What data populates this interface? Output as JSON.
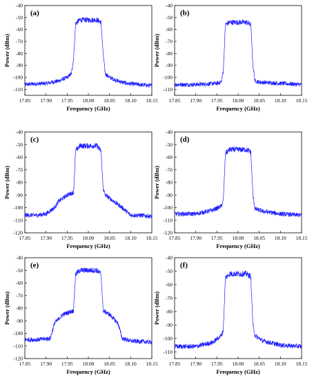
{
  "chart_data": [
    {
      "panel": "(a)",
      "type": "line",
      "xlabel": "Frequency (GHz)",
      "ylabel": "Power (dBm)",
      "xlim": [
        17.85,
        18.15
      ],
      "ylim": [
        -115,
        -40
      ],
      "xticks": [
        "17.85",
        "17.90",
        "17.95",
        "18.00",
        "18.05",
        "18.10",
        "18.15"
      ],
      "yticks": [
        "-40",
        "-50",
        "-60",
        "-70",
        "-80",
        "-90",
        "-100",
        "-110"
      ],
      "color": "#1f1fff",
      "series": [
        {
          "x": [
            17.85,
            17.87,
            17.9,
            17.93,
            17.95,
            17.96,
            17.965,
            17.97,
            17.98,
            18.0,
            18.02,
            18.03,
            18.035,
            18.04,
            18.05,
            18.07,
            18.09,
            18.12,
            18.15
          ],
          "y": [
            -106,
            -105.5,
            -105,
            -103,
            -100,
            -97,
            -85,
            -55,
            -52,
            -52,
            -52,
            -54,
            -80,
            -97,
            -100,
            -103,
            -105,
            -106,
            -107
          ]
        }
      ]
    },
    {
      "panel": "(b)",
      "type": "line",
      "xlabel": "Frequency (GHz)",
      "ylabel": "Power (dBm)",
      "xlim": [
        17.85,
        18.15
      ],
      "ylim": [
        -115,
        -40
      ],
      "xticks": [
        "17.85",
        "17.90",
        "17.95",
        "18.00",
        "18.05",
        "18.10",
        "18.15"
      ],
      "yticks": [
        "-40",
        "-50",
        "-60",
        "-70",
        "-80",
        "-90",
        "-100",
        "-110"
      ],
      "color": "#1f1fff",
      "series": [
        {
          "x": [
            17.85,
            17.9,
            17.95,
            17.96,
            17.965,
            17.97,
            17.98,
            18.0,
            18.02,
            18.03,
            18.035,
            18.04,
            18.05,
            18.1,
            18.15
          ],
          "y": [
            -106,
            -106,
            -105,
            -104,
            -95,
            -56,
            -54,
            -54,
            -54,
            -56,
            -90,
            -103,
            -104,
            -105,
            -106
          ]
        }
      ]
    },
    {
      "panel": "(c)",
      "type": "line",
      "xlabel": "Frequency (GHz)",
      "ylabel": "Power (dBm)",
      "xlim": [
        17.85,
        18.15
      ],
      "ylim": [
        -120,
        -40
      ],
      "xticks": [
        "17.85",
        "17.90",
        "17.95",
        "18.00",
        "18.05",
        "18.10",
        "18.15"
      ],
      "yticks": [
        "-40",
        "-50",
        "-60",
        "-70",
        "-80",
        "-90",
        "-100",
        "-110",
        "-120"
      ],
      "color": "#1f1fff",
      "series": [
        {
          "x": [
            17.85,
            17.88,
            17.9,
            17.92,
            17.93,
            17.95,
            17.965,
            17.97,
            17.98,
            18.0,
            18.02,
            18.03,
            18.035,
            18.04,
            18.06,
            18.08,
            18.1,
            18.12,
            18.15
          ],
          "y": [
            -106,
            -106,
            -105,
            -100,
            -95,
            -90,
            -88,
            -55,
            -51,
            -51,
            -51,
            -55,
            -85,
            -90,
            -95,
            -100,
            -106,
            -106,
            -107
          ]
        }
      ]
    },
    {
      "panel": "(d)",
      "type": "line",
      "xlabel": "Frequency (GHz)",
      "ylabel": "Power (dBm)",
      "xlim": [
        17.85,
        18.15
      ],
      "ylim": [
        -120,
        -40
      ],
      "xticks": [
        "17.85",
        "17.90",
        "17.95",
        "18.00",
        "18.05",
        "18.10",
        "18.15"
      ],
      "yticks": [
        "-40",
        "-50",
        "-60",
        "-70",
        "-80",
        "-90",
        "-100",
        "-110",
        "-120"
      ],
      "color": "#1f1fff",
      "series": [
        {
          "x": [
            17.85,
            17.9,
            17.94,
            17.96,
            17.965,
            17.97,
            17.98,
            18.0,
            18.02,
            18.03,
            18.035,
            18.04,
            18.06,
            18.1,
            18.15
          ],
          "y": [
            -105,
            -105,
            -102,
            -99,
            -95,
            -57,
            -54,
            -54,
            -54,
            -56,
            -90,
            -101,
            -103,
            -105,
            -106
          ]
        }
      ]
    },
    {
      "panel": "(e)",
      "type": "line",
      "xlabel": "Frequency (GHz)",
      "ylabel": "Power (dBm)",
      "xlim": [
        17.85,
        18.15
      ],
      "ylim": [
        -120,
        -40
      ],
      "xticks": [
        "17.85",
        "17.90",
        "17.95",
        "18.00",
        "18.05",
        "18.10",
        "18.15"
      ],
      "yticks": [
        "-40",
        "-50",
        "-60",
        "-70",
        "-80",
        "-90",
        "-100",
        "-110",
        "-120"
      ],
      "color": "#1f1fff",
      "series": [
        {
          "x": [
            17.85,
            17.88,
            17.91,
            17.92,
            17.94,
            17.965,
            17.97,
            17.98,
            18.0,
            18.02,
            18.03,
            18.035,
            18.05,
            18.07,
            18.08,
            18.1,
            18.15
          ],
          "y": [
            -105,
            -105,
            -104,
            -92,
            -85,
            -82,
            -53,
            -50,
            -50,
            -50,
            -53,
            -82,
            -85,
            -92,
            -104,
            -106,
            -107
          ]
        }
      ]
    },
    {
      "panel": "(f)",
      "type": "line",
      "xlabel": "Frequency (GHz)",
      "ylabel": "Power (dBm)",
      "xlim": [
        17.85,
        18.15
      ],
      "ylim": [
        -115,
        -40
      ],
      "xticks": [
        "17.85",
        "17.90",
        "17.95",
        "18.00",
        "18.05",
        "18.10",
        "18.15"
      ],
      "yticks": [
        "-40",
        "-50",
        "-60",
        "-70",
        "-80",
        "-90",
        "-100",
        "-110"
      ],
      "color": "#1f1fff",
      "series": [
        {
          "x": [
            17.85,
            17.9,
            17.94,
            17.96,
            17.965,
            17.97,
            17.98,
            18.0,
            18.02,
            18.03,
            18.035,
            18.04,
            18.06,
            18.1,
            18.15
          ],
          "y": [
            -106,
            -106,
            -103,
            -98,
            -94,
            -55,
            -52,
            -52,
            -52,
            -54,
            -90,
            -98,
            -102,
            -105,
            -106
          ]
        }
      ]
    }
  ]
}
